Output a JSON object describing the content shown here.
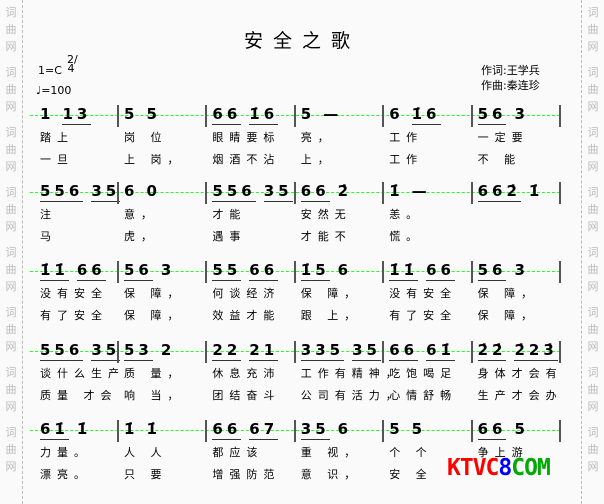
{
  "title": "安全之歌",
  "key": "1=C",
  "time_signature": "2/4",
  "tempo": "♩=100",
  "lyricist": "作词:王学兵",
  "composer": "作曲:秦连珍",
  "watermark": "词曲网",
  "logo": {
    "k": "KTVC",
    "n": "8",
    ".": ".",
    "c": "COM"
  },
  "colors": {
    "staff_guide": "#22ff22",
    "logo_red": "#ff0000",
    "logo_blue": "#0000ff",
    "logo_green": "#00aa00"
  },
  "rows": [
    {
      "measures": [
        {
          "notes": [
            "1",
            "13"
          ],
          "l1": "踏上",
          "l2": "一旦"
        },
        {
          "notes": [
            "5",
            "5"
          ],
          "l1": "岗 位",
          "l2": "上 岗，"
        },
        {
          "notes": [
            "66",
            "1̇6"
          ],
          "l1": "眼睛要标",
          "l2": "烟酒不沾"
        },
        {
          "notes": [
            "5",
            "—"
          ],
          "l1": "亮，",
          "l2": "上，"
        },
        {
          "notes": [
            "6",
            "1̇6"
          ],
          "l1": "工作",
          "l2": "工作"
        },
        {
          "notes": [
            "56",
            "3"
          ],
          "l1": "一定要",
          "l2": "不 能"
        }
      ]
    },
    {
      "measures": [
        {
          "notes": [
            "556",
            "35"
          ],
          "l1": "注",
          "l2": "马"
        },
        {
          "notes": [
            "6",
            "0"
          ],
          "l1": "意，",
          "l2": "虎，"
        },
        {
          "notes": [
            "556",
            "35"
          ],
          "l1": "才能",
          "l2": "遇事"
        },
        {
          "notes": [
            "66",
            "2̇"
          ],
          "l1": "安然无",
          "l2": "才能不"
        },
        {
          "notes": [
            "1̇",
            "—"
          ],
          "l1": "恙。",
          "l2": "慌。"
        },
        {
          "notes": [
            "662̇",
            "1̇"
          ],
          "l1": "",
          "l2": ""
        }
      ]
    },
    {
      "measures": [
        {
          "notes": [
            "1̇1̇",
            "66"
          ],
          "l1": "没有安全",
          "l2": "有了安全"
        },
        {
          "notes": [
            "56",
            "3"
          ],
          "l1": "保  障，",
          "l2": "保  障，"
        },
        {
          "notes": [
            "55",
            "66"
          ],
          "l1": "何谈经济",
          "l2": "效益才能"
        },
        {
          "notes": [
            "1̇5",
            "6"
          ],
          "l1": "保  障，",
          "l2": "跟  上，"
        },
        {
          "notes": [
            "1̇1̇",
            "66"
          ],
          "l1": "没有安全",
          "l2": "有了安全"
        },
        {
          "notes": [
            "56",
            "3"
          ],
          "l1": "保  障，",
          "l2": "保  障，"
        }
      ]
    },
    {
      "measures": [
        {
          "notes": [
            "556",
            "35"
          ],
          "l1": "谈什么生产",
          "l2": "质量 才会"
        },
        {
          "notes": [
            "53",
            "2"
          ],
          "l1": "质  量，",
          "l2": "响  当，"
        },
        {
          "notes": [
            "22",
            "21"
          ],
          "l1": "休息充沛",
          "l2": "团结奋斗"
        },
        {
          "notes": [
            "335",
            "35"
          ],
          "l1": "工作有精神，",
          "l2": "公司有活力，"
        },
        {
          "notes": [
            "66",
            "61̇"
          ],
          "l1": "吃饱喝足",
          "l2": "心情舒畅"
        },
        {
          "notes": [
            "2̇2̇",
            "2̇23̇"
          ],
          "l1": "身体才会有",
          "l2": "生产才会办"
        }
      ]
    },
    {
      "measures": [
        {
          "notes": [
            "61̇",
            "1̇"
          ],
          "l1": "力量。",
          "l2": "漂亮。"
        },
        {
          "notes": [
            "1̇",
            "1̇"
          ],
          "l1": "人 人",
          "l2": "只 要"
        },
        {
          "notes": [
            "66",
            "67"
          ],
          "l1": "都应该",
          "l2": "增强防范"
        },
        {
          "notes": [
            "35",
            "6"
          ],
          "l1": "重  视，",
          "l2": "意  识，"
        },
        {
          "notes": [
            "5",
            "5"
          ],
          "l1": "个 个",
          "l2": "安 全"
        },
        {
          "notes": [
            "66",
            "5"
          ],
          "l1": "争上游",
          "l2": ""
        }
      ]
    }
  ]
}
